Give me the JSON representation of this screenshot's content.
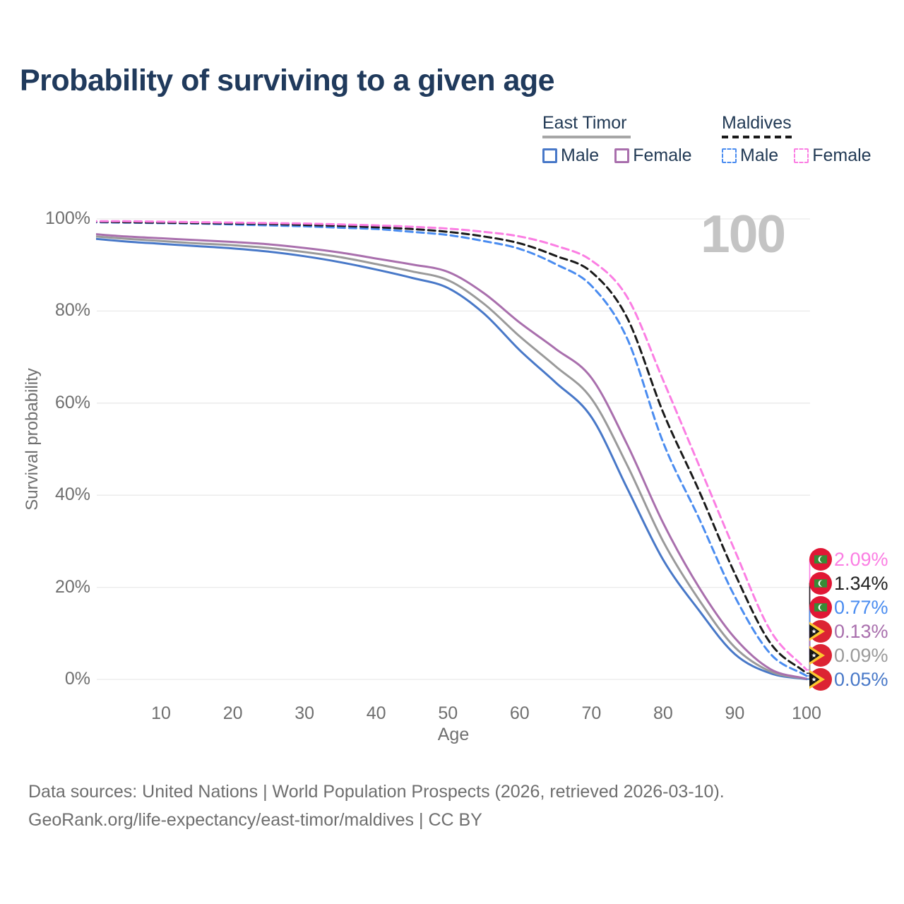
{
  "title": "Probability of surviving to a given age",
  "watermark_age": "100",
  "legend": {
    "groups": [
      {
        "label": "East Timor",
        "underline_color": "#a6a6a6",
        "underline_dashed": false,
        "items": [
          {
            "label": "Male",
            "color": "#4878c8"
          },
          {
            "label": "Female",
            "color": "#a96fad"
          }
        ]
      },
      {
        "label": "Maldives",
        "underline_color": "#1a1a1a",
        "underline_dashed": true,
        "items": [
          {
            "label": "Male",
            "color": "#4a8cf0"
          },
          {
            "label": "Female",
            "color": "#fb7ee3"
          }
        ]
      }
    ]
  },
  "axes": {
    "y_label": "Survival probability",
    "x_label": "Age"
  },
  "chart_data": {
    "type": "line",
    "title": "Probability of surviving to a given age",
    "xlabel": "Age",
    "ylabel": "Survival probability",
    "xlim": [
      0,
      100
    ],
    "ylim": [
      0,
      100
    ],
    "grid": "horizontal",
    "legend_position": "top-right",
    "x_ticks": [
      10,
      20,
      30,
      40,
      50,
      60,
      70,
      80,
      90,
      100
    ],
    "y_ticks": [
      {
        "label": "100%",
        "value": 100
      },
      {
        "label": "80%",
        "value": 80
      },
      {
        "label": "60%",
        "value": 60
      },
      {
        "label": "40%",
        "value": 40
      },
      {
        "label": "20%",
        "value": 20
      },
      {
        "label": "0%",
        "value": 0
      }
    ],
    "ages": [
      0,
      5,
      10,
      15,
      20,
      25,
      30,
      35,
      40,
      45,
      50,
      55,
      60,
      65,
      70,
      75,
      80,
      85,
      90,
      95,
      100
    ],
    "series": [
      {
        "name": "East Timor — Male",
        "style": "solid",
        "color": "#4878c8",
        "values": [
          95.8,
          95.1,
          94.6,
          94.1,
          93.6,
          92.9,
          91.9,
          90.6,
          89.0,
          87.2,
          85.0,
          79.5,
          71.5,
          64.5,
          57.0,
          41.5,
          26.0,
          15.0,
          5.5,
          1.3,
          0.05
        ]
      },
      {
        "name": "East Timor — Both sexes",
        "style": "solid",
        "color": "#9a9a9a",
        "values": [
          96.3,
          95.7,
          95.2,
          94.7,
          94.3,
          93.7,
          92.8,
          91.7,
          90.2,
          88.6,
          86.7,
          81.6,
          74.5,
          68.0,
          61.0,
          46.5,
          30.0,
          17.3,
          7.0,
          1.7,
          0.09
        ]
      },
      {
        "name": "East Timor — Female",
        "style": "solid",
        "color": "#a96fad",
        "values": [
          96.8,
          96.2,
          95.8,
          95.4,
          95.0,
          94.5,
          93.7,
          92.7,
          91.4,
          90.1,
          88.5,
          83.9,
          77.5,
          71.8,
          65.5,
          51.0,
          34.0,
          20.0,
          9.0,
          2.2,
          0.13
        ]
      },
      {
        "name": "Maldives — Male",
        "style": "dashed",
        "color": "#4a8cf0",
        "values": [
          99.3,
          99.2,
          99.1,
          99.0,
          98.8,
          98.6,
          98.4,
          98.1,
          97.8,
          97.2,
          96.5,
          95.2,
          93.5,
          90.2,
          85.5,
          74.0,
          51.5,
          35.0,
          18.0,
          5.5,
          0.77
        ]
      },
      {
        "name": "Maldives — Both sexes",
        "style": "dashed",
        "color": "#1a1a1a",
        "values": [
          99.4,
          99.3,
          99.2,
          99.1,
          99.0,
          98.9,
          98.7,
          98.5,
          98.2,
          97.8,
          97.2,
          96.2,
          94.7,
          92.0,
          88.5,
          78.5,
          58.0,
          41.0,
          23.0,
          7.8,
          1.34
        ]
      },
      {
        "name": "Maldives — Female",
        "style": "dashed",
        "color": "#fb7ee3",
        "values": [
          99.5,
          99.5,
          99.4,
          99.3,
          99.2,
          99.1,
          99.0,
          98.8,
          98.6,
          98.3,
          97.9,
          97.2,
          96.2,
          94.2,
          91.0,
          83.0,
          65.0,
          46.5,
          28.0,
          10.5,
          2.09
        ]
      }
    ]
  },
  "endpoints": [
    {
      "series": "Maldives — Female",
      "label": "2.09%",
      "color": "#fb7ee3",
      "flag": "maldives",
      "series_index": 5
    },
    {
      "series": "Maldives — Both sexes",
      "label": "1.34%",
      "color": "#222222",
      "flag": "maldives",
      "series_index": 4
    },
    {
      "series": "Maldives — Male",
      "label": "0.77%",
      "color": "#4a8cf0",
      "flag": "maldives",
      "series_index": 3
    },
    {
      "series": "East Timor — Female",
      "label": "0.13%",
      "color": "#a96fad",
      "flag": "east-timor",
      "series_index": 2
    },
    {
      "series": "East Timor — Both sexes",
      "label": "0.09%",
      "color": "#9a9a9a",
      "flag": "east-timor",
      "series_index": 1
    },
    {
      "series": "East Timor — Male",
      "label": "0.05%",
      "color": "#4878c8",
      "flag": "east-timor",
      "series_index": 0
    }
  ],
  "footer": {
    "line1": "Data sources: United Nations | World Population Prospects (2026, retrieved 2026-03-10).",
    "line2": "GeoRank.org/life-expectancy/east-timor/maldives | CC BY"
  }
}
